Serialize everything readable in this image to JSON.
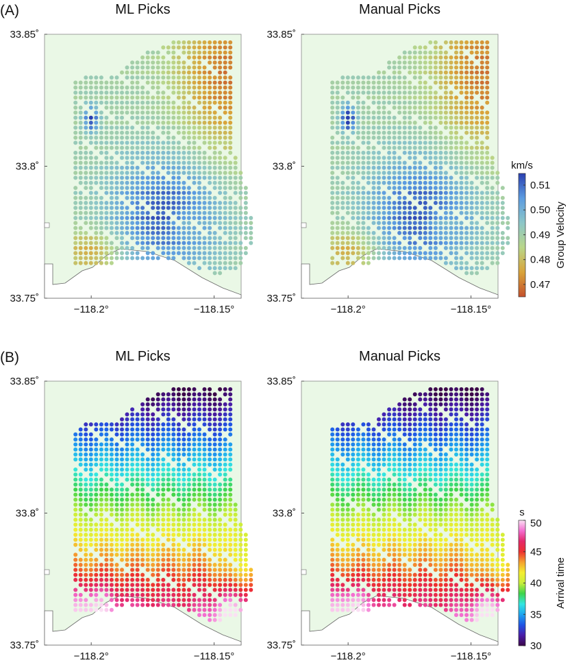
{
  "panel_labels": [
    "(A)",
    "(B)"
  ],
  "chart_data": [
    {
      "type": "scatter",
      "panel": "A",
      "title": "ML Picks",
      "variable": "Group Velocity",
      "xlim": [
        -118.219,
        -118.139
      ],
      "ylim": [
        33.75,
        33.85
      ],
      "xticks": [
        -118.2,
        -118.15
      ],
      "xtick_labels": [
        "−118.2°",
        "−118.15°"
      ],
      "yticks": [
        33.85,
        33.8,
        33.75
      ],
      "ytick_labels": [
        "33.85˚",
        "33.8˚",
        "33.75˚"
      ]
    },
    {
      "type": "scatter",
      "panel": "A",
      "title": "Manual Picks",
      "variable": "Group Velocity",
      "xlim": [
        -118.219,
        -118.139
      ],
      "ylim": [
        33.75,
        33.85
      ],
      "xticks": [
        -118.2,
        -118.15
      ],
      "xtick_labels": [
        "−118.2°",
        "−118.15°"
      ],
      "yticks": [
        33.85,
        33.8,
        33.75
      ],
      "ytick_labels": [
        "33.85˚",
        "33.8˚",
        "33.75˚"
      ]
    },
    {
      "type": "scatter",
      "panel": "B",
      "title": "ML Picks",
      "variable": "Arrival time",
      "xlim": [
        -118.219,
        -118.139
      ],
      "ylim": [
        33.75,
        33.85
      ],
      "xticks": [
        -118.2,
        -118.15
      ],
      "xtick_labels": [
        "−118.2°",
        "−118.15°"
      ],
      "yticks": [
        33.85,
        33.8,
        33.75
      ],
      "ytick_labels": [
        "33.85˚",
        "33.8˚",
        "33.75˚"
      ]
    },
    {
      "type": "scatter",
      "panel": "B",
      "title": "Manual Picks",
      "variable": "Arrival time",
      "xlim": [
        -118.219,
        -118.139
      ],
      "ylim": [
        33.75,
        33.85
      ],
      "xticks": [
        -118.2,
        -118.15
      ],
      "xtick_labels": [
        "−118.2°",
        "−118.15°"
      ],
      "yticks": [
        33.85,
        33.8,
        33.75
      ],
      "ytick_labels": [
        "33.85˚",
        "33.8˚",
        "33.75˚"
      ]
    }
  ],
  "colorbars": [
    {
      "unit": "km/s",
      "label": "Group Velocity",
      "range": [
        0.465,
        0.5147
      ],
      "ticks": [
        0.51,
        0.5,
        0.49,
        0.48,
        0.47
      ],
      "tick_labels": [
        "0.51",
        "0.50",
        "0.49",
        "0.48",
        "0.47"
      ],
      "colors": [
        "#c4502c",
        "#d9a43a",
        "#b9d68a",
        "#8cc6c8",
        "#5b9be0",
        "#2a3fb0"
      ]
    },
    {
      "unit": "s",
      "label": "Arrival time",
      "range": [
        30,
        50
      ],
      "ticks": [
        50,
        45,
        40,
        35,
        30
      ],
      "tick_labels": [
        "50",
        "45",
        "40",
        "35",
        "30"
      ],
      "colors": [
        "#3b0648",
        "#4a1ca8",
        "#1f55e6",
        "#1fa6f0",
        "#33e6e0",
        "#3ed44a",
        "#c9ee3a",
        "#f4ee30",
        "#f5a02e",
        "#ee2f2f",
        "#e4286a",
        "#f46ed0",
        "#fbe0f4"
      ]
    }
  ]
}
